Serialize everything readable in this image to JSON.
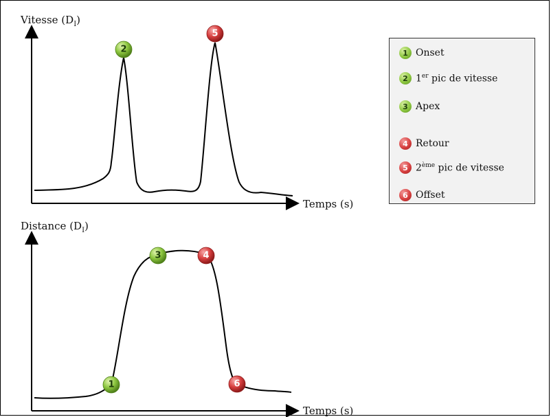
{
  "top_chart": {
    "ylabel": "Vitesse (D",
    "ylabel_sub": "I",
    "ylabel_close": ")",
    "xlabel": "Temps (s)"
  },
  "bottom_chart": {
    "ylabel": "Distance (D",
    "ylabel_sub": "I",
    "ylabel_close": ")",
    "xlabel": "Temps (s)"
  },
  "markers": {
    "m1": "1",
    "m2": "2",
    "m3": "3",
    "m4": "4",
    "m5": "5",
    "m6": "6"
  },
  "legend": {
    "items": [
      {
        "num": "1",
        "pre": "Onset",
        "sup": "",
        "post": "",
        "color": "green"
      },
      {
        "num": "2",
        "pre": "1",
        "sup": "er",
        "post": " pic de vitesse",
        "color": "green"
      },
      {
        "num": "3",
        "pre": "Apex",
        "sup": "",
        "post": "",
        "color": "green"
      },
      {
        "num": "4",
        "pre": "Retour",
        "sup": "",
        "post": "",
        "color": "red"
      },
      {
        "num": "5",
        "pre": "2",
        "sup": "ème",
        "post": " pic de vitesse",
        "color": "red"
      },
      {
        "num": "6",
        "pre": "Offset",
        "sup": "",
        "post": "",
        "color": "red"
      }
    ]
  },
  "colors": {
    "green": "#8cc63f",
    "red": "#d84040"
  }
}
